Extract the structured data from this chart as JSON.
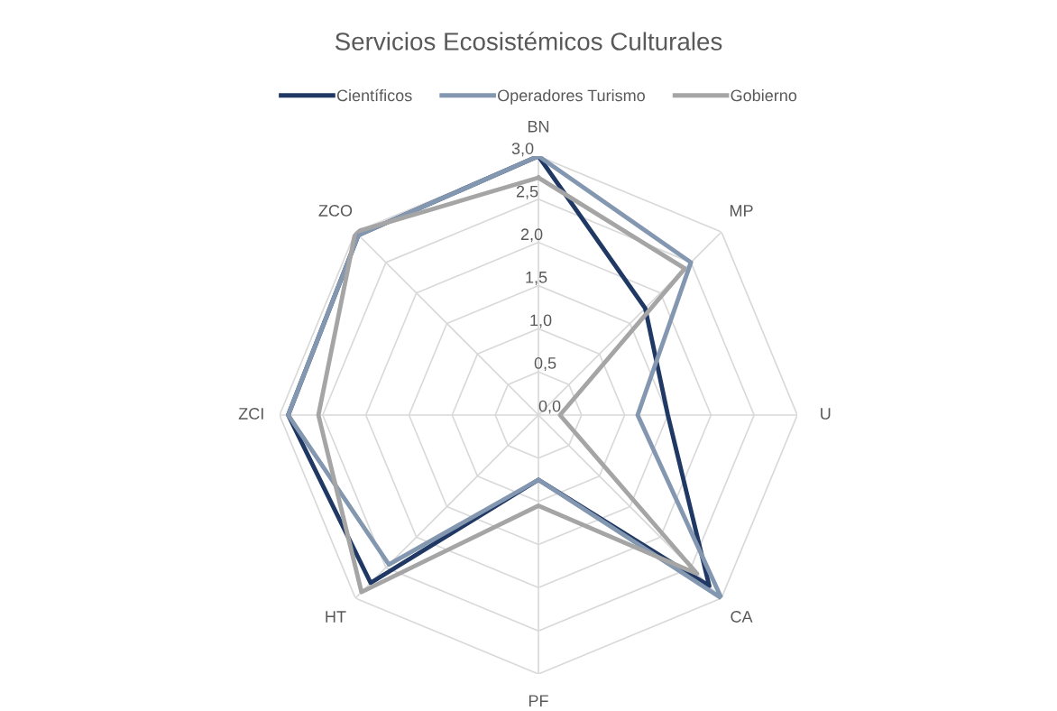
{
  "chart_data": {
    "type": "radar",
    "title": "Servicios Ecosistémicos Culturales",
    "categories": [
      "BN",
      "MP",
      "U",
      "CA",
      "PF",
      "HT",
      "ZCI",
      "ZCO"
    ],
    "series": [
      {
        "name": "Científicos",
        "color": "#1f3864",
        "values": [
          3.0,
          1.75,
          1.5,
          2.8,
          0.75,
          2.75,
          2.9,
          2.95
        ]
      },
      {
        "name": "Operadores Turismo",
        "color": "#8497b0",
        "values": [
          3.0,
          2.5,
          1.15,
          3.0,
          0.75,
          2.45,
          2.9,
          2.95
        ]
      },
      {
        "name": "Gobierno",
        "color": "#a5a5a5",
        "values": [
          2.75,
          2.4,
          0.25,
          2.6,
          1.05,
          2.9,
          2.55,
          3.0
        ]
      }
    ],
    "ylim": [
      0,
      3
    ],
    "yticks": [
      {
        "value": 0,
        "label": "0,0"
      },
      {
        "value": 0.5,
        "label": "0,5"
      },
      {
        "value": 1,
        "label": "1,0"
      },
      {
        "value": 1.5,
        "label": "1,5"
      },
      {
        "value": 2,
        "label": "2,0"
      },
      {
        "value": 2.5,
        "label": "2,5"
      },
      {
        "value": 3,
        "label": "3,0"
      }
    ],
    "grid": true,
    "legend": "top",
    "marker": "none",
    "line_style": "solid"
  }
}
